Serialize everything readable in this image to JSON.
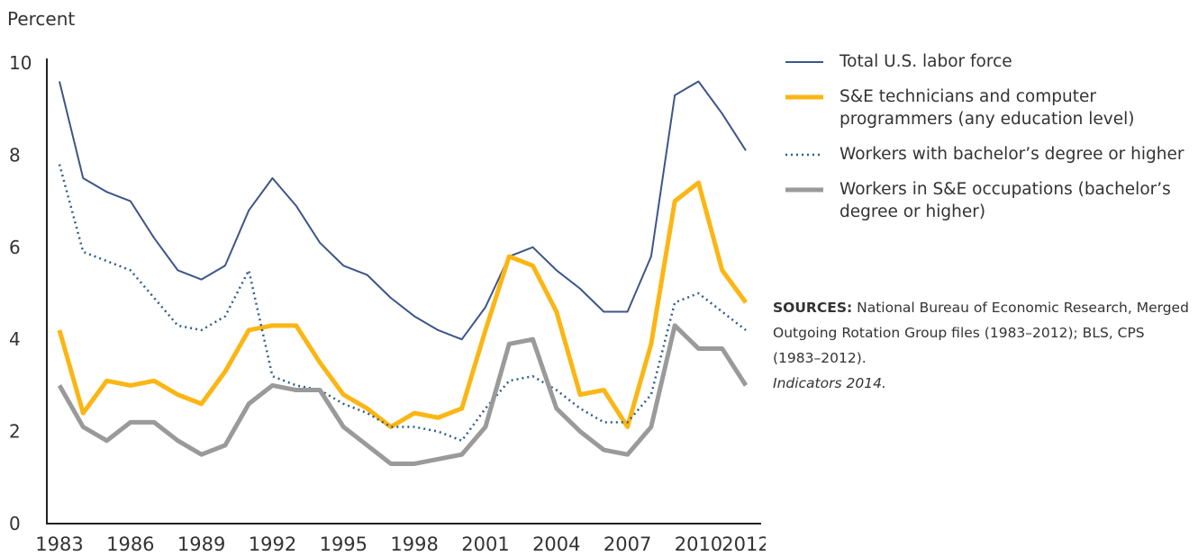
{
  "chart_data": {
    "type": "line",
    "y_label": "Percent",
    "x": [
      1983,
      1984,
      1985,
      1986,
      1987,
      1988,
      1989,
      1990,
      1991,
      1992,
      1993,
      1994,
      1995,
      1996,
      1997,
      1998,
      1999,
      2000,
      2001,
      2002,
      2003,
      2004,
      2005,
      2006,
      2007,
      2008,
      2009,
      2010,
      2011,
      2012
    ],
    "series": [
      {
        "name": "Total U.S. labor force",
        "color": "#3d5688",
        "line_style": "solid",
        "line_width": 2,
        "values": [
          9.6,
          7.5,
          7.2,
          7.0,
          6.2,
          5.5,
          5.3,
          5.6,
          6.8,
          7.5,
          6.9,
          6.1,
          5.6,
          5.4,
          4.9,
          4.5,
          4.2,
          4.0,
          4.7,
          5.8,
          6.0,
          5.5,
          5.1,
          4.6,
          4.6,
          5.8,
          9.3,
          9.6,
          8.9,
          8.1
        ]
      },
      {
        "name": "S&E technicians and computer programmers (any education level)",
        "color": "#fbb614",
        "line_style": "solid",
        "line_width": 5,
        "values": [
          4.2,
          2.4,
          3.1,
          3.0,
          3.1,
          2.8,
          2.6,
          3.3,
          4.2,
          4.3,
          4.3,
          3.5,
          2.8,
          2.5,
          2.1,
          2.4,
          2.3,
          2.5,
          4.2,
          5.8,
          5.6,
          4.6,
          2.8,
          2.9,
          2.1,
          3.9,
          7.0,
          7.4,
          5.5,
          4.8
        ]
      },
      {
        "name": "Workers with bachelor’s degree or higher",
        "color": "#2f5d8c",
        "line_style": "dotted",
        "line_width": 2.5,
        "values": [
          7.8,
          5.9,
          5.7,
          5.5,
          4.9,
          4.3,
          4.2,
          4.5,
          5.5,
          3.2,
          3.0,
          2.9,
          2.6,
          2.4,
          2.1,
          2.1,
          2.0,
          1.8,
          2.5,
          3.1,
          3.2,
          2.9,
          2.5,
          2.2,
          2.2,
          2.8,
          4.8,
          5.0,
          4.6,
          4.2
        ]
      },
      {
        "name": "Workers in S&E occupations (bachelor’s degree or higher)",
        "color": "#9a9a9a",
        "line_style": "solid",
        "line_width": 5,
        "values": [
          3.0,
          2.1,
          1.8,
          2.2,
          2.2,
          1.8,
          1.5,
          1.7,
          2.6,
          3.0,
          2.9,
          2.9,
          2.1,
          1.7,
          1.3,
          1.3,
          1.4,
          1.5,
          2.1,
          3.9,
          4.0,
          2.5,
          2.0,
          1.6,
          1.5,
          2.1,
          4.3,
          3.8,
          3.8,
          3.0
        ]
      }
    ],
    "xlim": [
      1983,
      2012
    ],
    "xticks": [
      1983,
      1986,
      1989,
      1992,
      1995,
      1998,
      2001,
      2004,
      2007,
      2010,
      2012
    ],
    "ylim": [
      0,
      10
    ],
    "yticks": [
      0,
      2,
      4,
      6,
      8,
      10
    ],
    "legend": "right",
    "sources": {
      "label": "SOURCES:",
      "text": "National Bureau of Economic Research, Merged Outgoing Rotation Group files (1983–2012); BLS, CPS (1983–2012).",
      "citation": "Indicators 2014."
    }
  }
}
